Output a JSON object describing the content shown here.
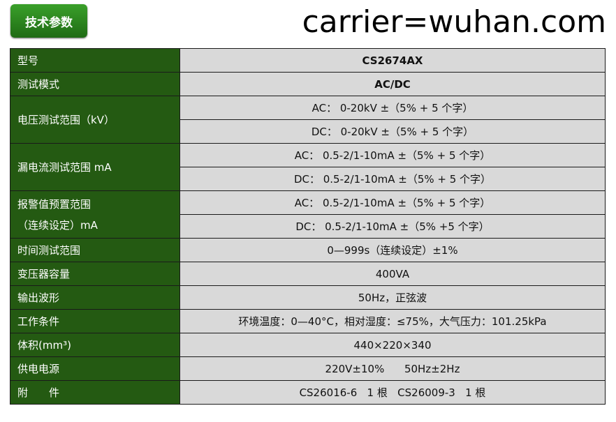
{
  "title": "技术参数",
  "rows": [
    {
      "k": "型号",
      "v": [
        "CS2674AX"
      ]
    },
    {
      "k": "测试模式",
      "v": [
        "AC/DC"
      ]
    },
    {
      "k": "电压测试范围（kV）",
      "v": [
        "AC： 0-20kV ±（5% + 5 个字）",
        "DC： 0-20kV ±（5% + 5 个字）"
      ]
    },
    {
      "k": "漏电流测试范围 mA",
      "v": [
        "AC： 0.5-2/1-10mA ±（5% + 5 个字）",
        "DC： 0.5-2/1-10mA ±（5% + 5 个字）"
      ]
    },
    {
      "k": "报警值预置范围",
      "k2": "（连续设定）mA",
      "v": [
        "AC： 0.5-2/1-10mA ±（5% + 5 个字）",
        "DC： 0.5-2/1-10mA ±（5% +5 个字）"
      ]
    },
    {
      "k": "时间测试范围",
      "v": [
        "0—999s（连续设定）±1%"
      ]
    },
    {
      "k": "变压器容量",
      "v": [
        "400VA"
      ]
    },
    {
      "k": "输出波形",
      "v": [
        "50Hz，正弦波"
      ]
    },
    {
      "k": "工作条件",
      "v": [
        "环境温度：0—40°C，相对湿度：≤75%，大气压力：101.25kPa"
      ]
    },
    {
      "k": "体积(mm³)",
      "v": [
        "440×220×340"
      ]
    },
    {
      "k": "供电电源",
      "v": [
        "220V±10%      50Hz±2Hz"
      ]
    },
    {
      "k": "附　　件",
      "v": [
        "CS26016-6   1 根   CS26009-3   1 根"
      ]
    }
  ],
  "watermark": "carrier=wuhan.com"
}
